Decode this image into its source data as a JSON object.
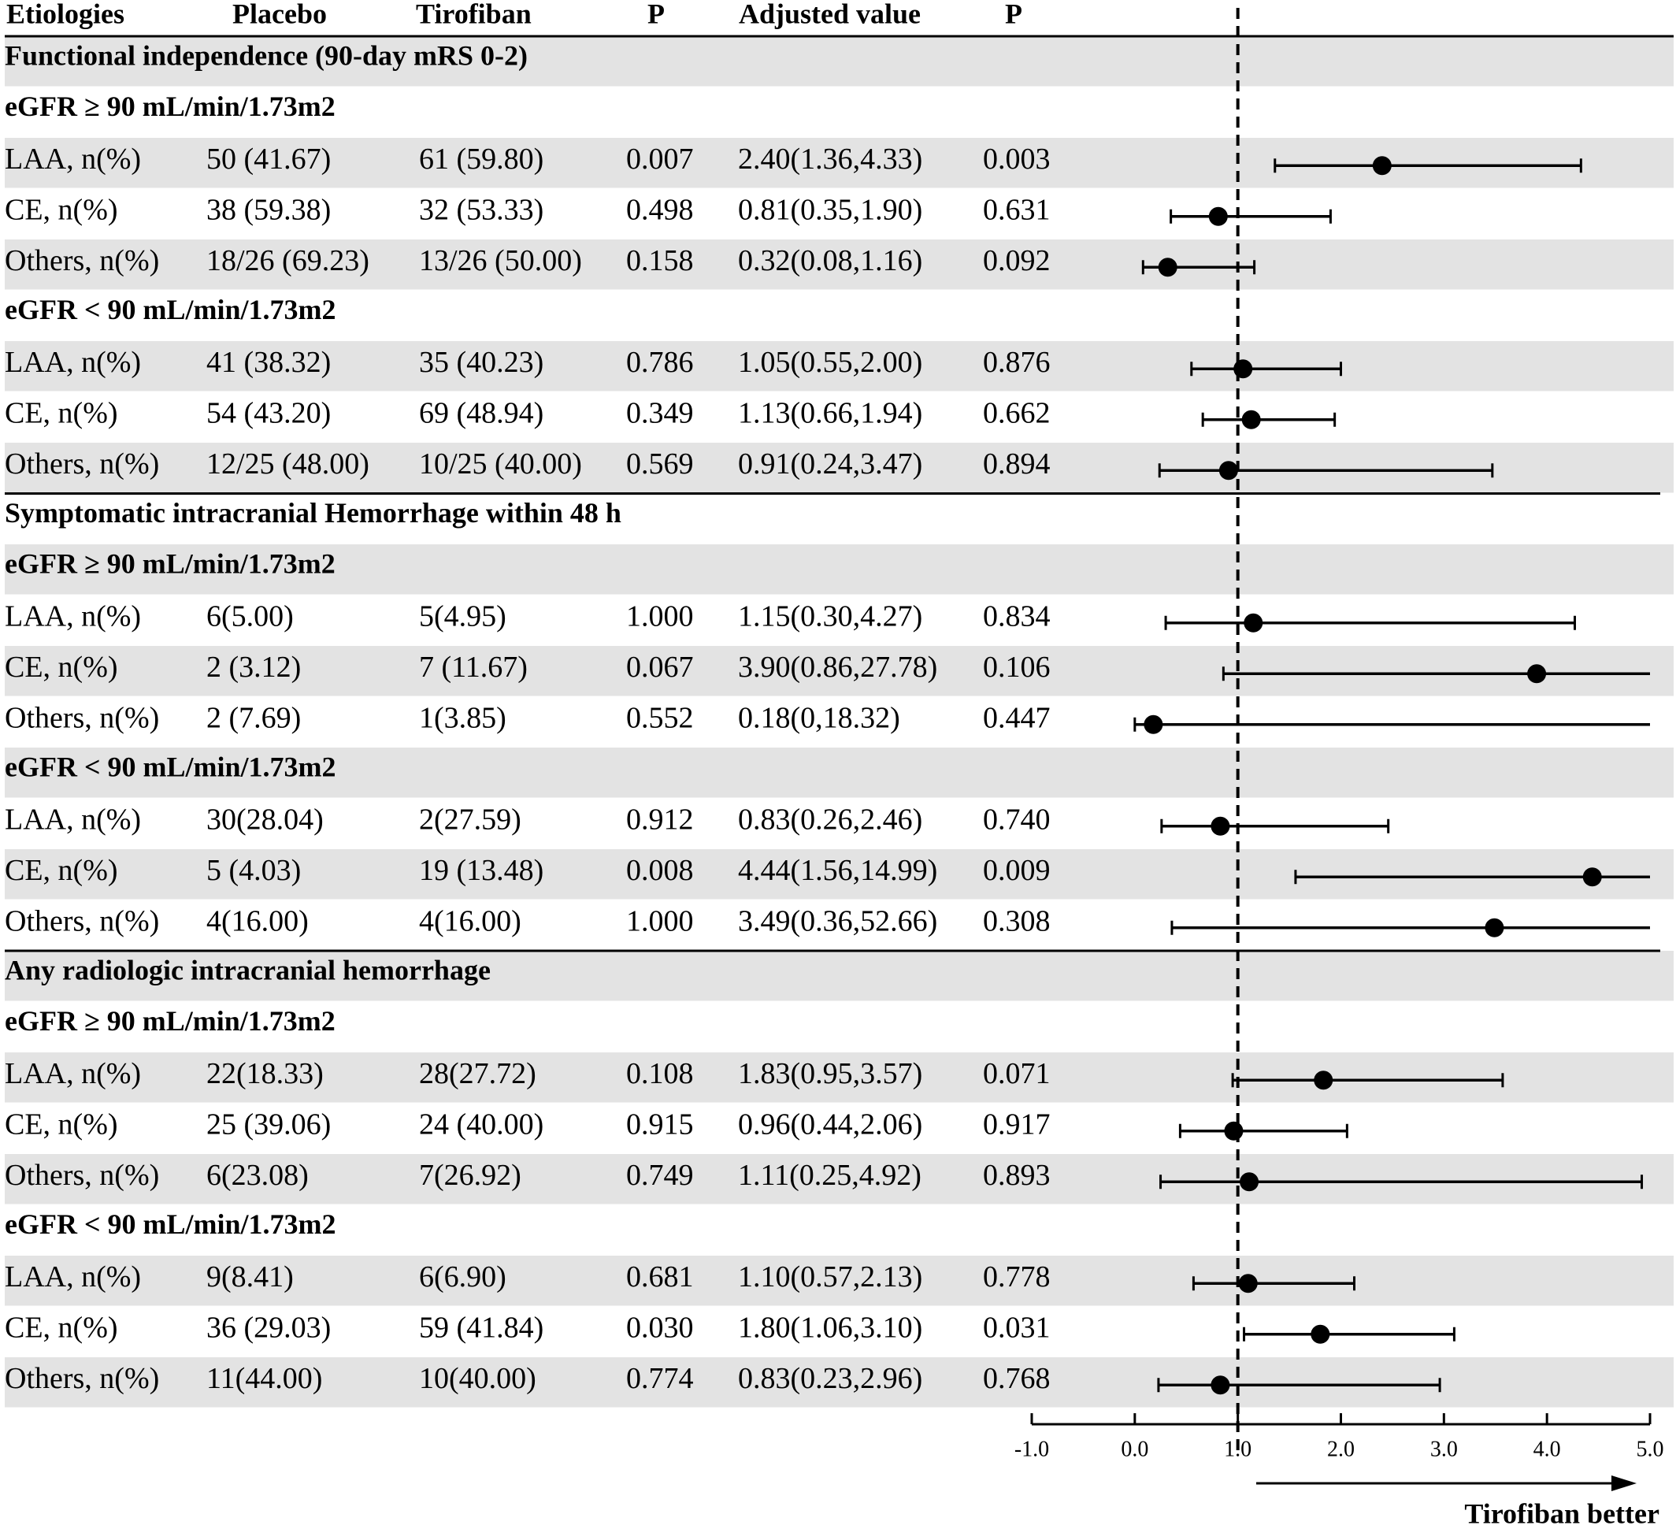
{
  "chart_data": {
    "type": "forest",
    "columns": [
      "Etiologies",
      "Placebo",
      "Tirofiban",
      "P",
      "Adjusted value",
      "P"
    ],
    "x_ticks": [
      "-1.0",
      "0.0",
      "1.0",
      "2.0",
      "3.0",
      "4.0",
      "5.0"
    ],
    "xlim": [
      -1,
      5
    ],
    "reference_line": 1,
    "arrow_label": "Tirofiban better",
    "rows": [
      {
        "kind": "section",
        "label": "Functional independence (90-day mRS 0-2)",
        "shaded": true
      },
      {
        "kind": "subgroup",
        "label": "eGFR ≥ 90 mL/min/1.73m2",
        "shaded": false
      },
      {
        "kind": "data",
        "label": "LAA, n(%)",
        "placebo": "50 (41.67)",
        "tirofiban": "61 (59.80)",
        "p": "0.007",
        "adjusted": "2.40(1.36,4.33)",
        "p_adj": "0.003",
        "est": 2.4,
        "lo": 1.36,
        "hi": 4.33,
        "shaded": true
      },
      {
        "kind": "data",
        "label": "CE, n(%)",
        "placebo": "38 (59.38)",
        "tirofiban": "32 (53.33)",
        "p": "0.498",
        "adjusted": "0.81(0.35,1.90)",
        "p_adj": "0.631",
        "est": 0.81,
        "lo": 0.35,
        "hi": 1.9,
        "shaded": false
      },
      {
        "kind": "data",
        "label": "Others, n(%)",
        "placebo": "18/26 (69.23)",
        "tirofiban": "13/26 (50.00)",
        "p": "0.158",
        "adjusted": "0.32(0.08,1.16)",
        "p_adj": "0.092",
        "est": 0.32,
        "lo": 0.08,
        "hi": 1.16,
        "shaded": true
      },
      {
        "kind": "subgroup",
        "label": "eGFR < 90 mL/min/1.73m2",
        "shaded": false
      },
      {
        "kind": "data",
        "label": "LAA, n(%)",
        "placebo": "41 (38.32)",
        "tirofiban": "35 (40.23)",
        "p": "0.786",
        "adjusted": "1.05(0.55,2.00)",
        "p_adj": "0.876",
        "est": 1.05,
        "lo": 0.55,
        "hi": 2.0,
        "shaded": true
      },
      {
        "kind": "data",
        "label": "CE, n(%)",
        "placebo": "54 (43.20)",
        "tirofiban": "69 (48.94)",
        "p": "0.349",
        "adjusted": "1.13(0.66,1.94)",
        "p_adj": "0.662",
        "est": 1.13,
        "lo": 0.66,
        "hi": 1.94,
        "shaded": false
      },
      {
        "kind": "data",
        "label": "Others, n(%)",
        "placebo": "12/25 (48.00)",
        "tirofiban": "10/25 (40.00)",
        "p": "0.569",
        "adjusted": "0.91(0.24,3.47)",
        "p_adj": "0.894",
        "est": 0.91,
        "lo": 0.24,
        "hi": 3.47,
        "shaded": true
      },
      {
        "kind": "section",
        "label": "Symptomatic intracranial Hemorrhage within 48 h",
        "shaded": false,
        "rule_above": true
      },
      {
        "kind": "subgroup",
        "label": "eGFR ≥ 90 mL/min/1.73m2",
        "shaded": true
      },
      {
        "kind": "data",
        "label": "LAA, n(%)",
        "placebo": "6(5.00)",
        "tirofiban": "5(4.95)",
        "p": "1.000",
        "adjusted": "1.15(0.30,4.27)",
        "p_adj": "0.834",
        "est": 1.15,
        "lo": 0.3,
        "hi": 4.27,
        "shaded": false
      },
      {
        "kind": "data",
        "label": "CE, n(%)",
        "placebo": "2 (3.12)",
        "tirofiban": "7 (11.67)",
        "p": "0.067",
        "adjusted": "3.90(0.86,27.78)",
        "p_adj": "0.106",
        "est": 3.9,
        "lo": 0.86,
        "hi": 27.78,
        "shaded": true
      },
      {
        "kind": "data",
        "label": "Others, n(%)",
        "placebo": "2 (7.69)",
        "tirofiban": "1(3.85)",
        "p": "0.552",
        "adjusted": "0.18(0,18.32)",
        "p_adj": "0.447",
        "est": 0.18,
        "lo": 0,
        "hi": 18.32,
        "shaded": false
      },
      {
        "kind": "subgroup",
        "label": "eGFR < 90 mL/min/1.73m2",
        "shaded": true
      },
      {
        "kind": "data",
        "label": "LAA, n(%)",
        "placebo": "30(28.04)",
        "tirofiban": "2(27.59)",
        "p": "0.912",
        "adjusted": "0.83(0.26,2.46)",
        "p_adj": "0.740",
        "est": 0.83,
        "lo": 0.26,
        "hi": 2.46,
        "shaded": false
      },
      {
        "kind": "data",
        "label": "CE, n(%)",
        "placebo": "5 (4.03)",
        "tirofiban": "19 (13.48)",
        "p": "0.008",
        "adjusted": "4.44(1.56,14.99)",
        "p_adj": "0.009",
        "est": 4.44,
        "lo": 1.56,
        "hi": 14.99,
        "shaded": true
      },
      {
        "kind": "data",
        "label": "Others, n(%)",
        "placebo": "4(16.00)",
        "tirofiban": "4(16.00)",
        "p": "1.000",
        "adjusted": "3.49(0.36,52.66)",
        "p_adj": "0.308",
        "est": 3.49,
        "lo": 0.36,
        "hi": 52.66,
        "shaded": false
      },
      {
        "kind": "section",
        "label": "Any radiologic intracranial hemorrhage",
        "shaded": true,
        "rule_above": true
      },
      {
        "kind": "subgroup",
        "label": "eGFR ≥ 90 mL/min/1.73m2",
        "shaded": false
      },
      {
        "kind": "data",
        "label": "LAA, n(%)",
        "placebo": "22(18.33)",
        "tirofiban": "28(27.72)",
        "p": "0.108",
        "adjusted": "1.83(0.95,3.57)",
        "p_adj": "0.071",
        "est": 1.83,
        "lo": 0.95,
        "hi": 3.57,
        "shaded": true
      },
      {
        "kind": "data",
        "label": "CE, n(%)",
        "placebo": "25 (39.06)",
        "tirofiban": "24 (40.00)",
        "p": "0.915",
        "adjusted": "0.96(0.44,2.06)",
        "p_adj": "0.917",
        "est": 0.96,
        "lo": 0.44,
        "hi": 2.06,
        "shaded": false
      },
      {
        "kind": "data",
        "label": "Others, n(%)",
        "placebo": "6(23.08)",
        "tirofiban": "7(26.92)",
        "p": "0.749",
        "adjusted": "1.11(0.25,4.92)",
        "p_adj": "0.893",
        "est": 1.11,
        "lo": 0.25,
        "hi": 4.92,
        "shaded": true
      },
      {
        "kind": "subgroup",
        "label": "eGFR < 90 mL/min/1.73m2",
        "shaded": false
      },
      {
        "kind": "data",
        "label": "LAA, n(%)",
        "placebo": "9(8.41)",
        "tirofiban": "6(6.90)",
        "p": "0.681",
        "adjusted": "1.10(0.57,2.13)",
        "p_adj": "0.778",
        "est": 1.1,
        "lo": 0.57,
        "hi": 2.13,
        "shaded": true
      },
      {
        "kind": "data",
        "label": "CE, n(%)",
        "placebo": "36 (29.03)",
        "tirofiban": "59 (41.84)",
        "p": "0.030",
        "adjusted": "1.80(1.06,3.10)",
        "p_adj": "0.031",
        "est": 1.8,
        "lo": 1.06,
        "hi": 3.1,
        "shaded": false
      },
      {
        "kind": "data",
        "label": "Others, n(%)",
        "placebo": "11(44.00)",
        "tirofiban": "10(40.00)",
        "p": "0.774",
        "adjusted": "0.83(0.23,2.96)",
        "p_adj": "0.768",
        "est": 0.83,
        "lo": 0.23,
        "hi": 2.96,
        "shaded": true
      }
    ]
  }
}
